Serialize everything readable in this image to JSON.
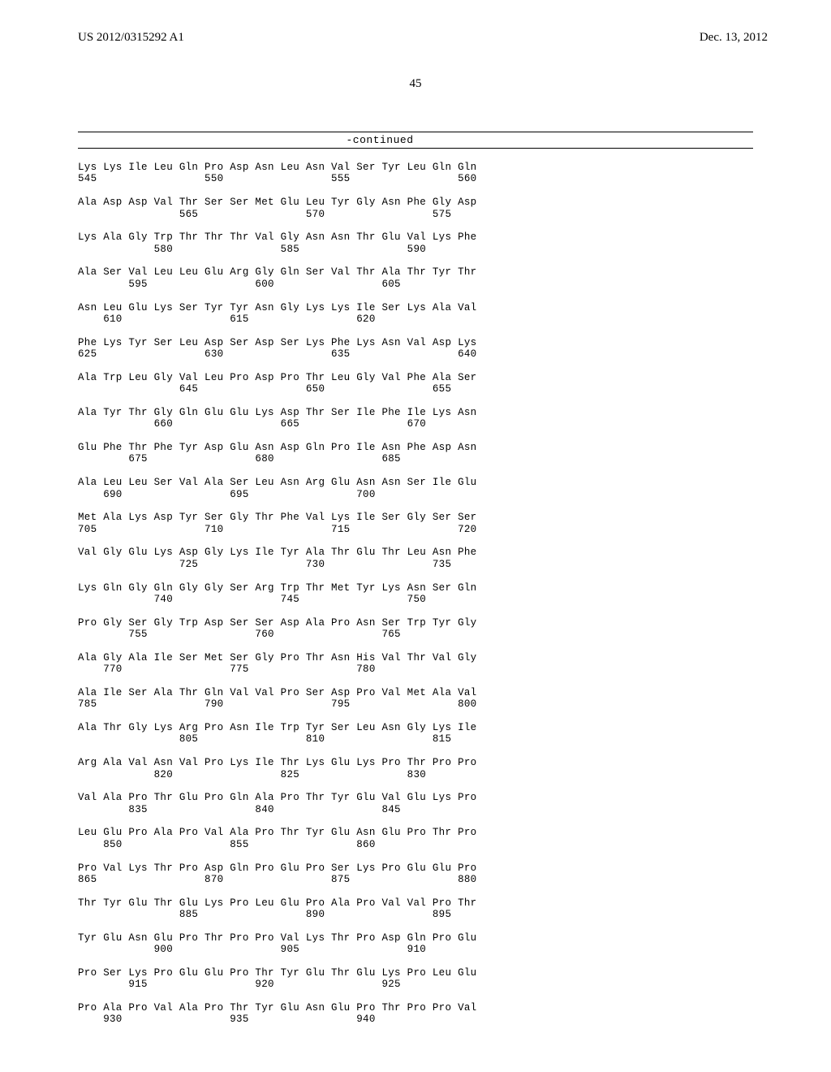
{
  "header": {
    "left": "US 2012/0315292 A1",
    "right": "Dec. 13, 2012"
  },
  "page_number": "45",
  "continued_label": "-continued",
  "sequence_rows": [
    {
      "aa": "Lys Lys Ile Leu Gln Pro Asp Asn Leu Asn Val Ser Tyr Leu Gln Gln",
      "nums": "545                 550                 555                 560"
    },
    {
      "aa": "Ala Asp Asp Val Thr Ser Ser Met Glu Leu Tyr Gly Asn Phe Gly Asp",
      "nums": "                565                 570                 575"
    },
    {
      "aa": "Lys Ala Gly Trp Thr Thr Thr Val Gly Asn Asn Thr Glu Val Lys Phe",
      "nums": "            580                 585                 590"
    },
    {
      "aa": "Ala Ser Val Leu Leu Glu Arg Gly Gln Ser Val Thr Ala Thr Tyr Thr",
      "nums": "        595                 600                 605"
    },
    {
      "aa": "Asn Leu Glu Lys Ser Tyr Tyr Asn Gly Lys Lys Ile Ser Lys Ala Val",
      "nums": "    610                 615                 620"
    },
    {
      "aa": "Phe Lys Tyr Ser Leu Asp Ser Asp Ser Lys Phe Lys Asn Val Asp Lys",
      "nums": "625                 630                 635                 640"
    },
    {
      "aa": "Ala Trp Leu Gly Val Leu Pro Asp Pro Thr Leu Gly Val Phe Ala Ser",
      "nums": "                645                 650                 655"
    },
    {
      "aa": "Ala Tyr Thr Gly Gln Glu Glu Lys Asp Thr Ser Ile Phe Ile Lys Asn",
      "nums": "            660                 665                 670"
    },
    {
      "aa": "Glu Phe Thr Phe Tyr Asp Glu Asn Asp Gln Pro Ile Asn Phe Asp Asn",
      "nums": "        675                 680                 685"
    },
    {
      "aa": "Ala Leu Leu Ser Val Ala Ser Leu Asn Arg Glu Asn Asn Ser Ile Glu",
      "nums": "    690                 695                 700"
    },
    {
      "aa": "Met Ala Lys Asp Tyr Ser Gly Thr Phe Val Lys Ile Ser Gly Ser Ser",
      "nums": "705                 710                 715                 720"
    },
    {
      "aa": "Val Gly Glu Lys Asp Gly Lys Ile Tyr Ala Thr Glu Thr Leu Asn Phe",
      "nums": "                725                 730                 735"
    },
    {
      "aa": "Lys Gln Gly Gln Gly Gly Ser Arg Trp Thr Met Tyr Lys Asn Ser Gln",
      "nums": "            740                 745                 750"
    },
    {
      "aa": "Pro Gly Ser Gly Trp Asp Ser Ser Asp Ala Pro Asn Ser Trp Tyr Gly",
      "nums": "        755                 760                 765"
    },
    {
      "aa": "Ala Gly Ala Ile Ser Met Ser Gly Pro Thr Asn His Val Thr Val Gly",
      "nums": "    770                 775                 780"
    },
    {
      "aa": "Ala Ile Ser Ala Thr Gln Val Val Pro Ser Asp Pro Val Met Ala Val",
      "nums": "785                 790                 795                 800"
    },
    {
      "aa": "Ala Thr Gly Lys Arg Pro Asn Ile Trp Tyr Ser Leu Asn Gly Lys Ile",
      "nums": "                805                 810                 815"
    },
    {
      "aa": "Arg Ala Val Asn Val Pro Lys Ile Thr Lys Glu Lys Pro Thr Pro Pro",
      "nums": "            820                 825                 830"
    },
    {
      "aa": "Val Ala Pro Thr Glu Pro Gln Ala Pro Thr Tyr Glu Val Glu Lys Pro",
      "nums": "        835                 840                 845"
    },
    {
      "aa": "Leu Glu Pro Ala Pro Val Ala Pro Thr Tyr Glu Asn Glu Pro Thr Pro",
      "nums": "    850                 855                 860"
    },
    {
      "aa": "Pro Val Lys Thr Pro Asp Gln Pro Glu Pro Ser Lys Pro Glu Glu Pro",
      "nums": "865                 870                 875                 880"
    },
    {
      "aa": "Thr Tyr Glu Thr Glu Lys Pro Leu Glu Pro Ala Pro Val Val Pro Thr",
      "nums": "                885                 890                 895"
    },
    {
      "aa": "Tyr Glu Asn Glu Pro Thr Pro Pro Val Lys Thr Pro Asp Gln Pro Glu",
      "nums": "            900                 905                 910"
    },
    {
      "aa": "Pro Ser Lys Pro Glu Glu Pro Thr Tyr Glu Thr Glu Lys Pro Leu Glu",
      "nums": "        915                 920                 925"
    },
    {
      "aa": "Pro Ala Pro Val Ala Pro Thr Tyr Glu Asn Glu Pro Thr Pro Pro Val",
      "nums": "    930                 935                 940"
    }
  ]
}
